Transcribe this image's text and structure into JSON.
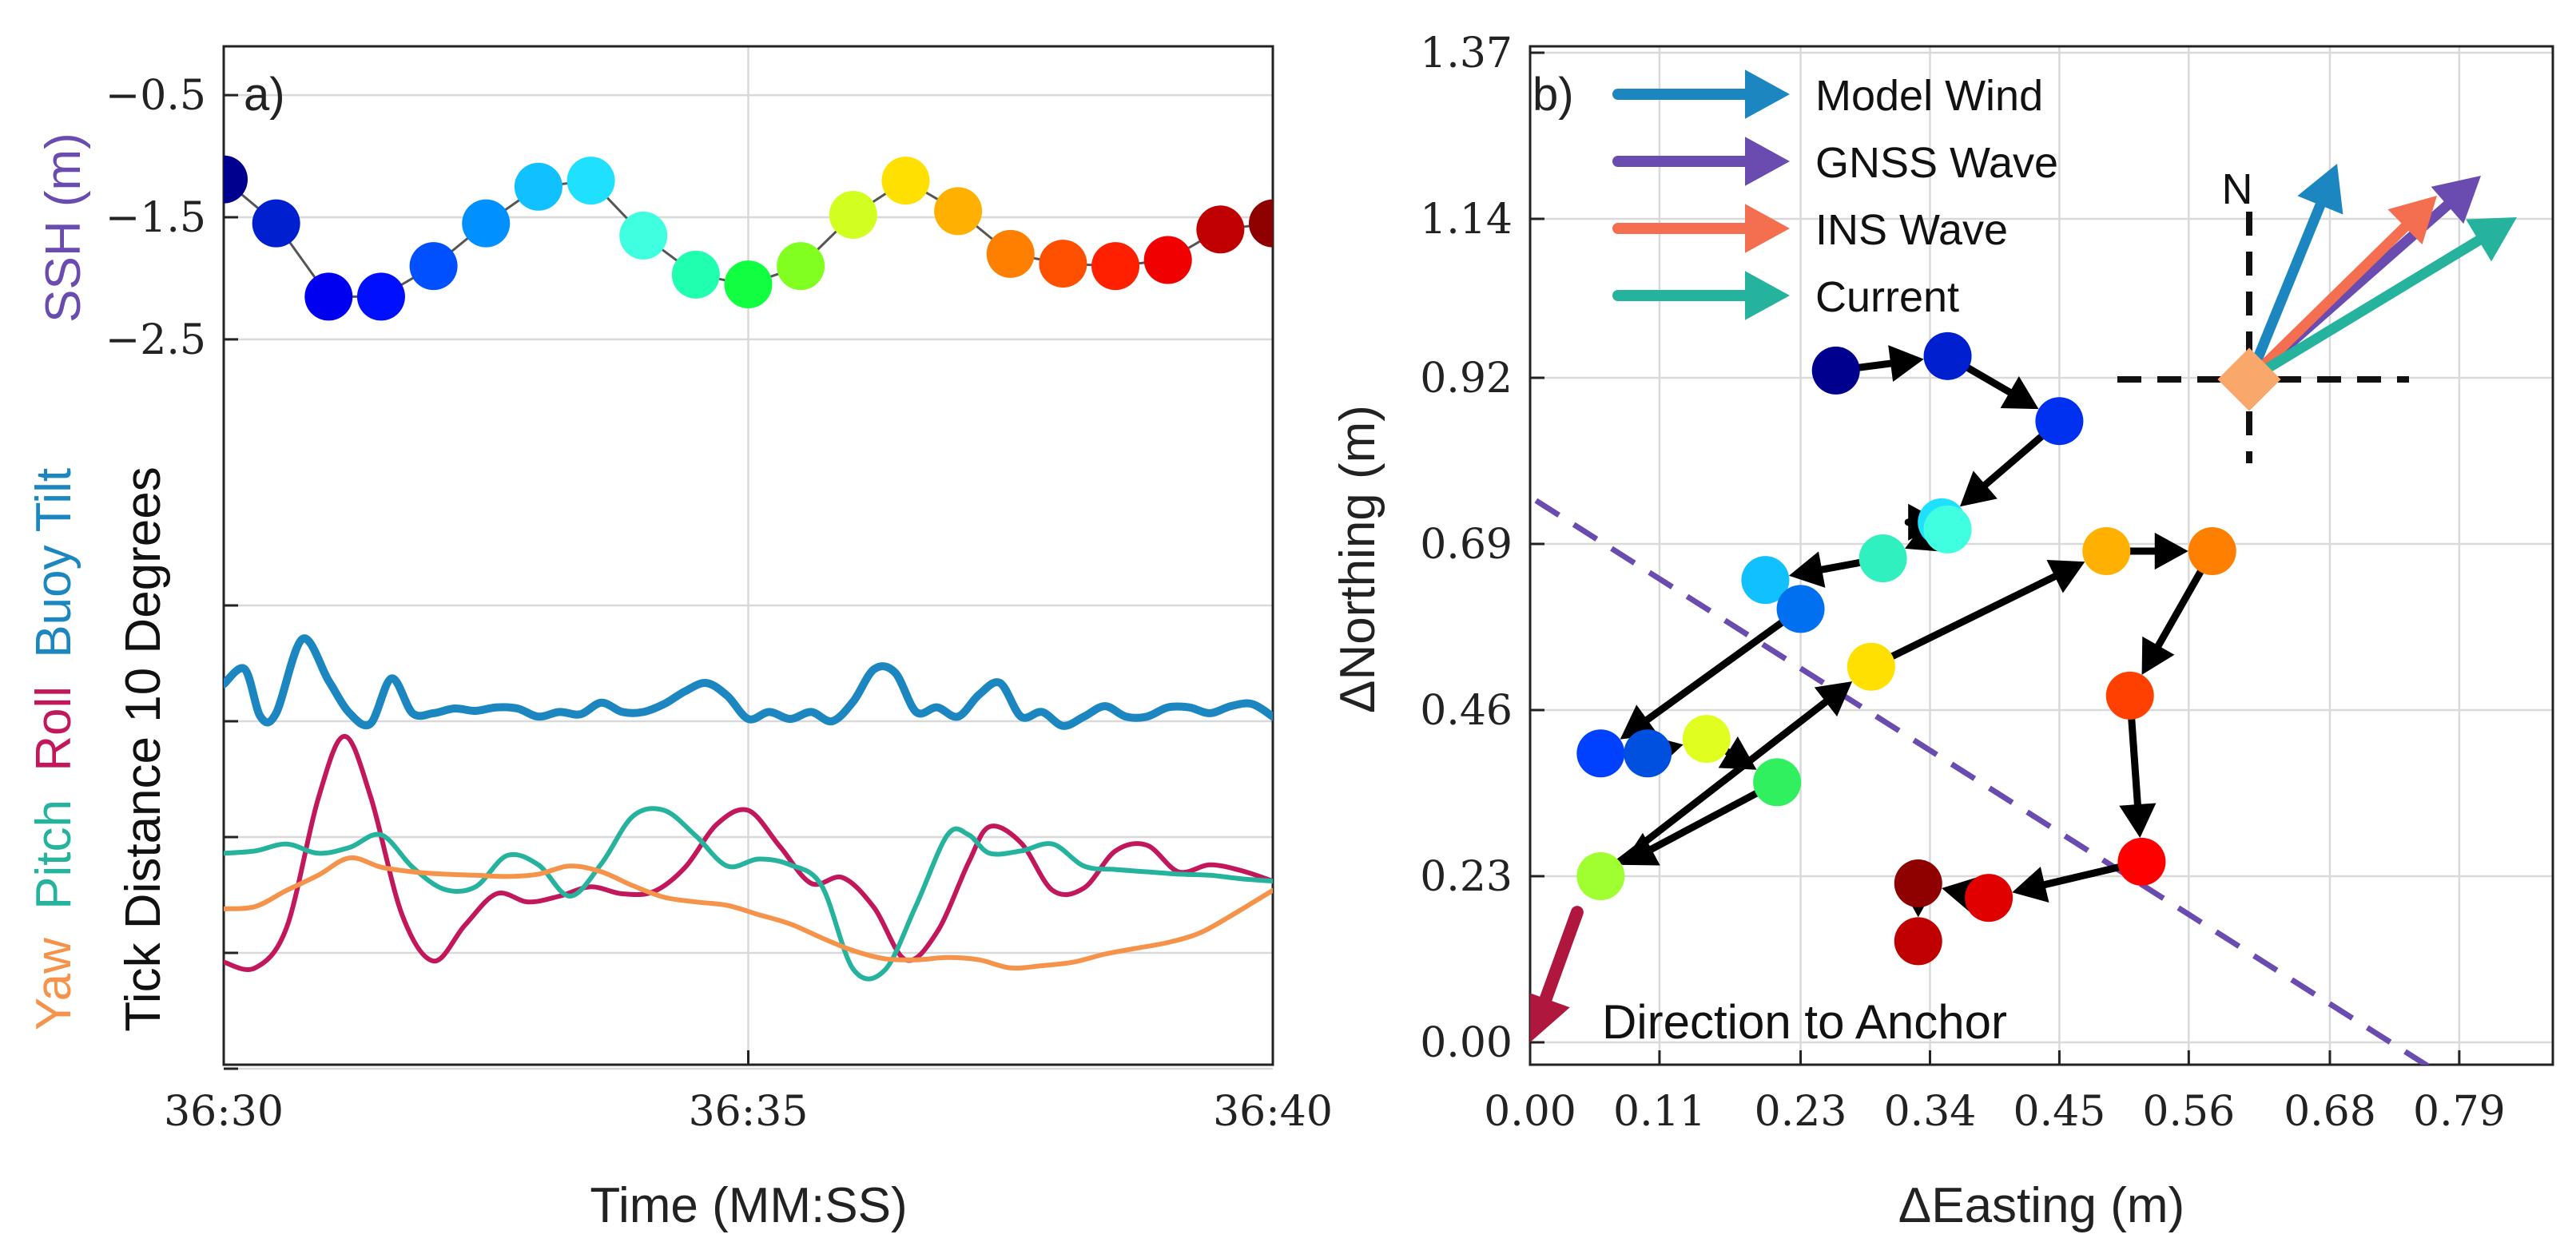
{
  "chart_data": [
    {
      "type": "line",
      "panel_label": "a)",
      "xlabel": "Time (MM:SS)",
      "x_ticks": [
        "36:30",
        "36:35",
        "36:40"
      ],
      "xlim": [
        "36:30",
        "36:40"
      ],
      "grid": true,
      "ssh": {
        "label": "SSH (m)",
        "ylim": [
          -2.9,
          -0.1
        ],
        "yticks": [
          -0.5,
          -1.5,
          -2.5
        ],
        "ytick_labels": [
          "−0.5",
          "−1.5",
          "−2.5"
        ],
        "time_s": [
          0,
          0.5,
          1.0,
          1.5,
          2.0,
          2.5,
          3.0,
          3.5,
          4.0,
          4.5,
          5.0,
          5.5,
          6.0,
          6.5,
          7.0,
          7.5,
          8.0,
          8.5,
          9.0,
          9.5,
          10.0
        ],
        "values": [
          -1.19,
          -1.55,
          -2.15,
          -2.15,
          -1.9,
          -1.55,
          -1.25,
          -1.2,
          -1.65,
          -1.97,
          -2.05,
          -1.9,
          -1.48,
          -1.2,
          -1.45,
          -1.8,
          -1.88,
          -1.9,
          -1.85,
          -1.6,
          -1.55
        ],
        "colors": [
          "#00008f",
          "#0020d0",
          "#0000f0",
          "#0010ff",
          "#0050ff",
          "#0090ff",
          "#10c0ff",
          "#20e0ff",
          "#40ffe0",
          "#20ffb0",
          "#10ff40",
          "#80ff20",
          "#d0ff20",
          "#ffe000",
          "#ffb000",
          "#ff8000",
          "#ff5000",
          "#ff2000",
          "#f00000",
          "#c00000",
          "#8f0000"
        ]
      },
      "left_label": {
        "prefix": "Tick Distance 10 Degrees",
        "yaw": "Yaw",
        "pitch": "Pitch",
        "roll": "Roll",
        "buoy_tilt": "Buoy Tilt"
      },
      "series": [
        {
          "name": "Buoy Tilt",
          "color": "#1b86c0",
          "time_s": [
            0,
            0.2,
            0.35,
            0.5,
            0.75,
            1.0,
            1.2,
            1.4,
            1.6,
            1.8,
            2.0,
            2.2,
            2.4,
            2.6,
            2.8,
            3.0,
            3.2,
            3.4,
            3.6,
            3.8,
            4.0,
            4.2,
            4.4,
            4.6,
            4.8,
            5.0,
            5.2,
            5.4,
            5.6,
            5.8,
            6.0,
            6.2,
            6.4,
            6.6,
            6.8,
            7.0,
            7.2,
            7.4,
            7.6,
            7.8,
            8.0,
            8.2,
            8.4,
            8.6,
            8.8,
            9.0,
            9.2,
            9.4,
            9.6,
            9.8,
            10.0
          ],
          "values": [
            13.2,
            14.5,
            10.4,
            10.7,
            17.1,
            13.5,
            10.7,
            9.8,
            13.7,
            10.7,
            10.7,
            11.1,
            10.9,
            11.2,
            11.1,
            10.4,
            10.8,
            10.6,
            11.6,
            10.8,
            10.8,
            11.5,
            12.6,
            13.3,
            12.2,
            10.2,
            10.8,
            10.2,
            10.8,
            10.0,
            11.7,
            14.5,
            14.2,
            10.8,
            11.2,
            10.4,
            12.3,
            13.3,
            10.4,
            10.8,
            9.6,
            10.4,
            11.3,
            10.4,
            10.4,
            11.2,
            11.2,
            10.7,
            11.3,
            11.5,
            10.4
          ]
        },
        {
          "name": "Roll",
          "color": "#c2185b",
          "time_s": [
            0,
            0.3,
            0.6,
            0.9,
            1.15,
            1.4,
            1.7,
            2.0,
            2.3,
            2.6,
            2.9,
            3.2,
            3.5,
            3.8,
            4.1,
            4.4,
            4.7,
            5.0,
            5.3,
            5.6,
            5.9,
            6.2,
            6.5,
            6.8,
            7.1,
            7.3,
            7.6,
            7.9,
            8.2,
            8.5,
            8.8,
            9.1,
            9.4,
            9.7,
            10.0
          ],
          "values": [
            -10.8,
            -11.3,
            -7.8,
            3.3,
            8.7,
            3.5,
            -6.7,
            -10.7,
            -7.6,
            -4.9,
            -5.6,
            -5.1,
            -4.3,
            -4.9,
            -4.7,
            -2.6,
            1.1,
            2.3,
            -0.8,
            -4.0,
            -3.5,
            -6.1,
            -10.6,
            -8.2,
            -2.2,
            0.9,
            -0.5,
            -4.6,
            -4.4,
            -1.2,
            -0.7,
            -3.0,
            -2.4,
            -2.9,
            -3.8
          ]
        },
        {
          "name": "Pitch",
          "color": "#26b39e",
          "time_s": [
            0,
            0.3,
            0.6,
            0.9,
            1.2,
            1.5,
            1.8,
            2.1,
            2.4,
            2.7,
            3.0,
            3.3,
            3.6,
            3.9,
            4.2,
            4.5,
            4.8,
            5.1,
            5.4,
            5.7,
            6.0,
            6.3,
            6.6,
            6.9,
            7.1,
            7.3,
            7.6,
            7.9,
            8.2,
            8.5,
            8.8,
            9.1,
            9.4,
            9.7,
            10.0
          ],
          "values": [
            -1.4,
            -1.2,
            -0.6,
            -1.4,
            -0.9,
            0.2,
            -2.6,
            -4.5,
            -4.3,
            -1.6,
            -2.4,
            -5.1,
            -2.3,
            1.8,
            2.3,
            0.1,
            -2.5,
            -1.9,
            -2.4,
            -4.2,
            -11.4,
            -11.5,
            -5.9,
            0.2,
            0.2,
            -1.4,
            -1.2,
            -0.6,
            -2.5,
            -2.8,
            -3.0,
            -3.2,
            -3.3,
            -3.6,
            -3.8
          ]
        },
        {
          "name": "Yaw",
          "color": "#f5934a",
          "time_s": [
            0,
            0.3,
            0.6,
            0.9,
            1.2,
            1.5,
            1.8,
            2.1,
            2.4,
            2.7,
            3.0,
            3.3,
            3.6,
            3.9,
            4.2,
            4.5,
            4.8,
            5.1,
            5.4,
            5.7,
            6.0,
            6.3,
            6.6,
            6.9,
            7.2,
            7.5,
            7.8,
            8.1,
            8.4,
            8.7,
            9.0,
            9.3,
            9.6,
            10.0
          ],
          "values": [
            -6.2,
            -6.0,
            -4.6,
            -3.3,
            -1.8,
            -2.6,
            -3.0,
            -3.2,
            -3.3,
            -3.4,
            -3.2,
            -2.5,
            -3.0,
            -4.2,
            -5.2,
            -5.6,
            -5.9,
            -6.7,
            -7.5,
            -8.7,
            -9.8,
            -10.5,
            -10.6,
            -10.4,
            -10.6,
            -11.3,
            -11.1,
            -10.8,
            -10.1,
            -9.6,
            -9.1,
            -8.3,
            -6.8,
            -4.6
          ]
        }
      ]
    },
    {
      "type": "scatter",
      "panel_label": "b)",
      "xlabel": "ΔEasting (m)",
      "ylabel": "ΔNorthing (m)",
      "xlim": [
        0.0,
        0.81
      ],
      "ylim": [
        -0.04,
        1.37
      ],
      "xticks": [
        0.0,
        0.11,
        0.23,
        0.34,
        0.45,
        0.56,
        0.68,
        0.79
      ],
      "xtick_labels": [
        "0.00",
        "0.11",
        "0.23",
        "0.34",
        "0.45",
        "0.56",
        "0.68",
        "0.79"
      ],
      "yticks": [
        0.0,
        0.23,
        0.46,
        0.69,
        0.92,
        1.14,
        1.37
      ],
      "ytick_labels": [
        "0.00",
        "0.23",
        "0.46",
        "0.69",
        "0.92",
        "1.14",
        "1.37"
      ],
      "grid": true,
      "track": {
        "x": [
          0.26,
          0.355,
          0.45,
          0.35,
          0.355,
          0.3,
          0.2,
          0.23,
          0.06,
          0.1,
          0.15,
          0.21,
          0.06,
          0.29,
          0.49,
          0.58,
          0.51,
          0.52,
          0.39,
          0.33,
          0.33
        ],
        "y": [
          0.93,
          0.95,
          0.86,
          0.72,
          0.71,
          0.67,
          0.64,
          0.6,
          0.4,
          0.4,
          0.42,
          0.36,
          0.23,
          0.52,
          0.68,
          0.68,
          0.48,
          0.25,
          0.2,
          0.22,
          0.14
        ],
        "colors": [
          "#00008f",
          "#0020d0",
          "#0030f0",
          "#20e0ff",
          "#40ffe0",
          "#30f0c0",
          "#10c0ff",
          "#0070f0",
          "#0040ff",
          "#0050e0",
          "#e0ff20",
          "#30f060",
          "#a0ff30",
          "#ffe000",
          "#ffb000",
          "#ff8000",
          "#ff4000",
          "#ff0000",
          "#e00000",
          "#8f0000",
          "#c00000"
        ]
      },
      "legend": {
        "placement": "top-left",
        "entries": [
          {
            "name": "Model Wind",
            "color": "#1b86c0"
          },
          {
            "name": "GNSS Wave",
            "color": "#6a4bb0"
          },
          {
            "name": "INS Wave",
            "color": "#f36f4f"
          },
          {
            "name": "Current",
            "color": "#26b39e"
          }
        ]
      },
      "compass_label": "N",
      "anchor_label": "Direction to Anchor",
      "anchor_color": "#b0173f",
      "marker_color": "#f9a76b",
      "dashed_line_color": "#6a4bb0"
    }
  ]
}
